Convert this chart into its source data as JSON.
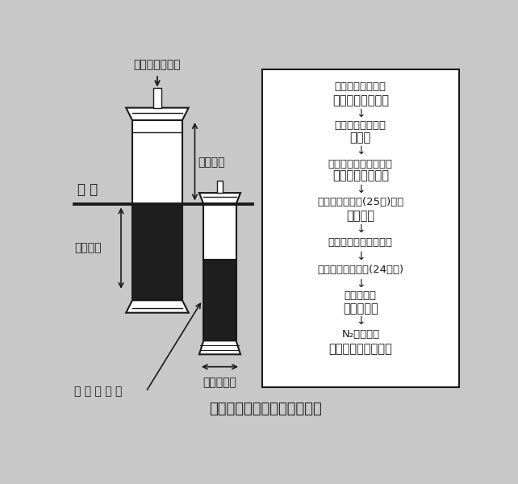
{
  "bg_color": "#c8c8c8",
  "figure_bg": "#c8c8c8",
  "title": "図１　測定手法の略図と手順",
  "title_fontsize": 13,
  "left_labels": {
    "acetylene": "アセチレンガス",
    "ground": "地 面",
    "depth": "１０ｃｍ",
    "above": "２０ｃｍ",
    "soil": "未 攪 乱 土 壌",
    "width": "６．４ｃｍ"
  },
  "flowchart_items": [
    {
      "text": "未攪乱土壌の採取",
      "bold": false,
      "arrow_after": false
    },
    {
      "text": "アクリルチューブ",
      "bold": true,
      "arrow_after": true
    },
    {
      "text": "上端と下端の密閉",
      "bold": false,
      "arrow_after": false
    },
    {
      "text": "ゴム栓",
      "bold": true,
      "arrow_after": true
    },
    {
      "text": "チューブ内空気の吸引",
      "bold": false,
      "arrow_after": false
    },
    {
      "text": "手動式真空ポンプ",
      "bold": true,
      "arrow_after": true
    },
    {
      "text": "アセチレンガス(25㎖)注入",
      "bold": false,
      "arrow_after": false
    },
    {
      "text": "シリンジ",
      "bold": true,
      "arrow_after": true
    },
    {
      "text": "空気の導入（１気圧）",
      "bold": false,
      "arrow_after": true
    },
    {
      "text": "圃場へ埋設・静置(24時間)",
      "bold": false,
      "arrow_after": true
    },
    {
      "text": "ガスの採取",
      "bold": false,
      "arrow_after": false
    },
    {
      "text": "真空採血管",
      "bold": true,
      "arrow_after": true
    },
    {
      "text": "N₂Ｏの測定",
      "bold": false,
      "arrow_after": false
    },
    {
      "text": "ガスクロマトグラフ",
      "bold": true,
      "arrow_after": false
    }
  ]
}
